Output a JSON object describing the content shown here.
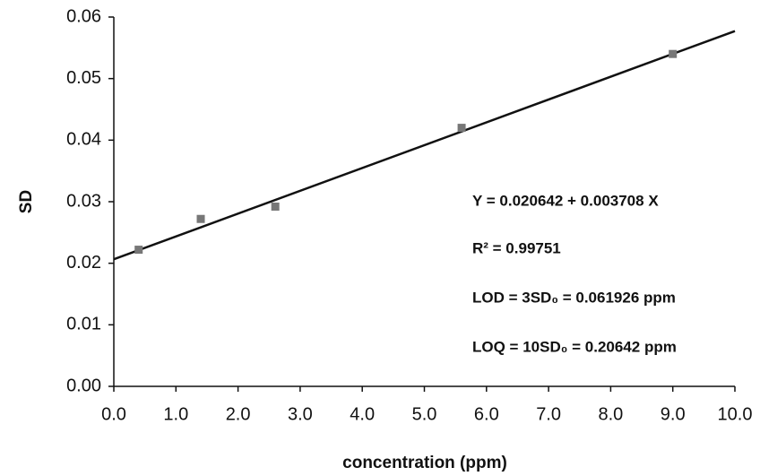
{
  "chart_data": {
    "type": "scatter",
    "x_label": "concentration (ppm)",
    "y_label": "SD",
    "x": [
      0.4,
      1.4,
      2.6,
      5.6,
      9.0
    ],
    "values": [
      0.0222,
      0.0272,
      0.0292,
      0.042,
      0.054
    ],
    "color": "#777777",
    "fit": {
      "intercept": 0.020642,
      "slope": 0.003708,
      "color": "#111111"
    },
    "xlim": [
      0,
      10
    ],
    "ylim": [
      0,
      0.06
    ],
    "xticks": [
      {
        "value": 0,
        "label": "0.0"
      },
      {
        "value": 1,
        "label": "1.0"
      },
      {
        "value": 2,
        "label": "2.0"
      },
      {
        "value": 3,
        "label": "3.0"
      },
      {
        "value": 4,
        "label": "4.0"
      },
      {
        "value": 5,
        "label": "5.0"
      },
      {
        "value": 6,
        "label": "6.0"
      },
      {
        "value": 7,
        "label": "7.0"
      },
      {
        "value": 8,
        "label": "8.0"
      },
      {
        "value": 9,
        "label": "9.0"
      },
      {
        "value": 10,
        "label": "10.0"
      }
    ],
    "yticks": [
      {
        "value": 0,
        "label": "0.00"
      },
      0.01,
      0.02,
      0.03,
      0.04,
      0.05,
      0.06
    ],
    "grid": false,
    "annotations": [
      "Y = 0.020642 + 0.003708 X",
      "R² = 0.99751",
      "LOD = 3SD₀ = 0.061926 ppm",
      "LOQ = 10SD₀ = 0.20642 ppm"
    ]
  }
}
